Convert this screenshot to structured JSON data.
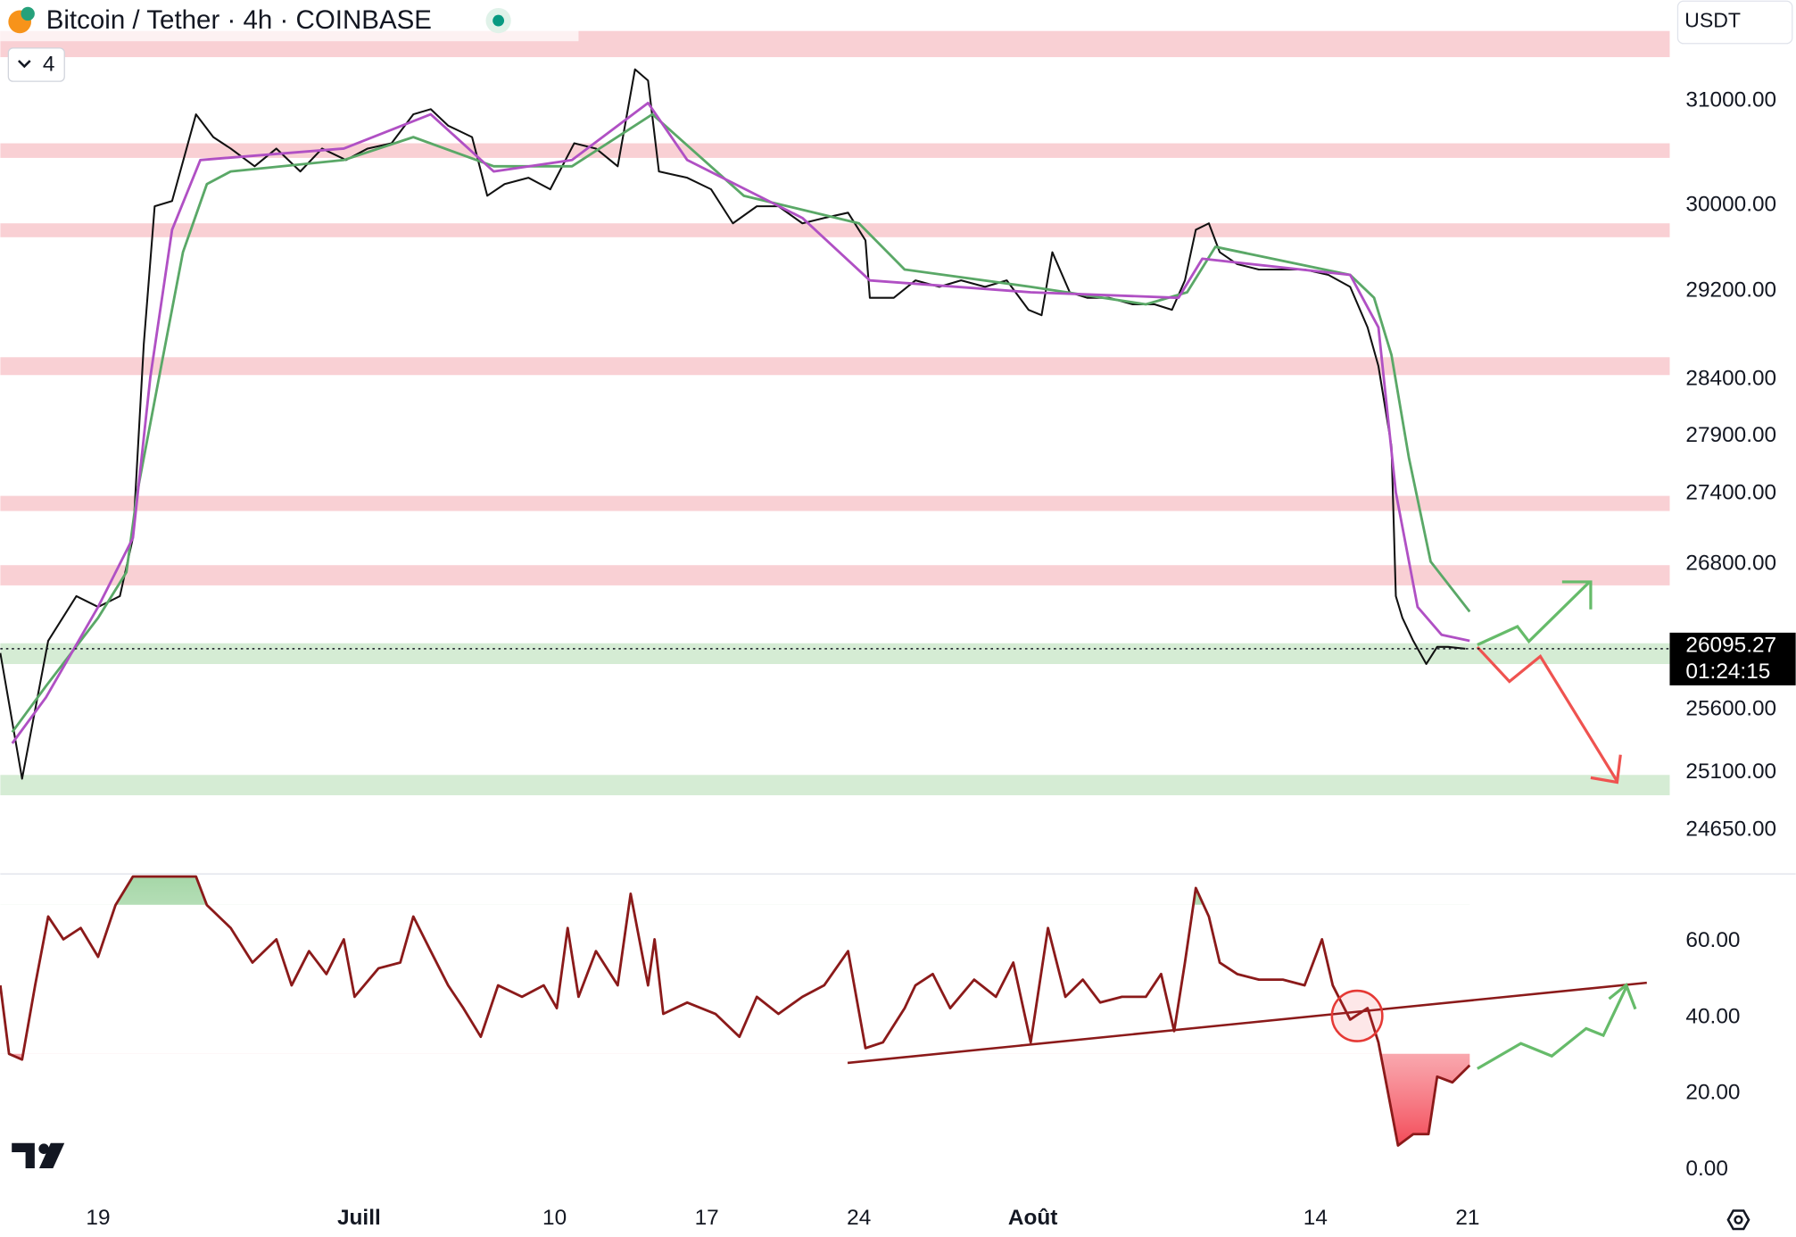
{
  "header": {
    "title": "Bitcoin / Tether · 4h · COINBASE",
    "badge": "4",
    "currency": "USDT"
  },
  "chart_data": [
    {
      "type": "line",
      "log_scale": true,
      "xlim": [
        14.5,
        91.3
      ],
      "ylim": [
        24320,
        32000
      ],
      "yticks": [
        {
          "value": 31000,
          "label": "31000.00"
        },
        {
          "value": 30000,
          "label": "30000.00"
        },
        {
          "value": 29200,
          "label": "29200.00"
        },
        {
          "value": 28400,
          "label": "28400.00"
        },
        {
          "value": 27900,
          "label": "27900.00"
        },
        {
          "value": 27400,
          "label": "27400.00"
        },
        {
          "value": 26800,
          "label": "26800.00"
        },
        {
          "value": 25600,
          "label": "25600.00"
        },
        {
          "value": 25100,
          "label": "25100.00"
        },
        {
          "value": 24650,
          "label": "24650.00"
        }
      ],
      "last_price": 26095.27,
      "countdown": "01:24:15",
      "zones": [
        {
          "from": 31430,
          "to": 31690,
          "color": "#f9d0d4"
        },
        {
          "from": 30450,
          "to": 30590,
          "color": "#f9d0d4"
        },
        {
          "from": 29700,
          "to": 29830,
          "color": "#f9d0d4"
        },
        {
          "from": 28440,
          "to": 28600,
          "color": "#f9d0d4"
        },
        {
          "from": 27250,
          "to": 27380,
          "color": "#f9d0d4"
        },
        {
          "from": 26620,
          "to": 26790,
          "color": "#f9d0d4"
        },
        {
          "from": 25970,
          "to": 26140,
          "color": "#d5ecd4"
        },
        {
          "from": 24920,
          "to": 25080,
          "color": "#d5ecd4"
        }
      ],
      "series": [
        {
          "color": "#111111",
          "x": [
            14.5,
            15.5,
            16.7,
            18,
            19,
            20,
            20.6,
            21.1,
            21.6,
            22.4,
            23.5,
            24.3,
            25.1,
            26.2,
            27.2,
            28.3,
            29.3,
            30.4,
            31.4,
            32.5,
            33.5,
            34.3,
            35.1,
            36.2,
            36.9,
            37.7,
            38.8,
            39.8,
            40.9,
            41.9,
            42.9,
            43.7,
            44.3,
            44.8,
            46.1,
            47.2,
            48.2,
            49.3,
            50.3,
            51.4,
            52.4,
            53.5,
            54.3,
            54.5,
            55.6,
            56.6,
            57.7,
            58.7,
            59.8,
            60.8,
            61.8,
            62.4,
            62.9,
            63.7,
            64.5,
            65.5,
            66.6,
            67.6,
            68.4,
            69.0,
            69.5,
            70.1,
            70.6,
            71.4,
            72.4,
            73.5,
            74.5,
            75.6,
            76.6,
            77.4,
            77.9,
            78.5,
            78.7,
            79.0,
            79.5,
            80.1,
            80.6,
            81.1,
            81.9
          ],
          "values": [
            26060,
            25050,
            26160,
            26530,
            26440,
            26530,
            27020,
            28720,
            29990,
            30040,
            30870,
            30650,
            30540,
            30370,
            30540,
            30320,
            30540,
            30430,
            30540,
            30590,
            30870,
            30920,
            30760,
            30650,
            30090,
            30200,
            30260,
            30150,
            30590,
            30540,
            30370,
            31310,
            31200,
            30320,
            30260,
            30150,
            29830,
            29990,
            29990,
            29830,
            29880,
            29930,
            29670,
            29140,
            29140,
            29300,
            29240,
            29300,
            29240,
            29300,
            29030,
            28980,
            29560,
            29190,
            29140,
            29140,
            29080,
            29080,
            29030,
            29300,
            29770,
            29830,
            29560,
            29450,
            29400,
            29400,
            29400,
            29350,
            29240,
            28870,
            28520,
            27810,
            26530,
            26350,
            26160,
            25970,
            26110,
            26110,
            26095.27
          ]
        },
        {
          "color": "#5aa867",
          "x": [
            15.05,
            16.6,
            19,
            20.3,
            20.8,
            21.9,
            22.9,
            24,
            25.1,
            30.3,
            33.5,
            37.2,
            40.8,
            44.5,
            48.7,
            54,
            56.1,
            61.9,
            67.2,
            69.1,
            70.4,
            76.6,
            77.7,
            78.5,
            79.3,
            80.3,
            82.1
          ],
          "values": [
            25420,
            25790,
            26350,
            26730,
            27410,
            28520,
            29560,
            30200,
            30320,
            30430,
            30650,
            30370,
            30370,
            30870,
            30090,
            29830,
            29400,
            29240,
            29080,
            29190,
            29610,
            29350,
            29140,
            28620,
            27710,
            26820,
            26400
          ]
        },
        {
          "color": "#b050c4",
          "x": [
            15.05,
            16.6,
            19,
            20.6,
            21.4,
            22.4,
            23.7,
            30.3,
            34.3,
            37.2,
            40.8,
            44.3,
            46.1,
            51.4,
            54.5,
            61.9,
            68.7,
            69.8,
            76.6,
            77.9,
            78.7,
            79.7,
            80.8,
            82.1
          ],
          "values": [
            25330,
            25700,
            26440,
            27020,
            28420,
            29770,
            30430,
            30540,
            30870,
            30320,
            30430,
            30980,
            30430,
            29880,
            29300,
            29190,
            29140,
            29500,
            29350,
            28870,
            27410,
            26440,
            26210,
            26160
          ]
        }
      ]
    },
    {
      "type": "line",
      "xlim": [
        14.5,
        91.3
      ],
      "ylim": [
        -5.7,
        77.7
      ],
      "yticks": [
        {
          "value": 60,
          "label": "60.00"
        },
        {
          "value": 40,
          "label": "40.00"
        },
        {
          "value": 20,
          "label": "20.00"
        },
        {
          "value": 0,
          "label": "0.00"
        }
      ],
      "xticks": [
        19,
        {
          "value": 31,
          "label": "Juill"
        },
        {
          "value": 40,
          "label": "10"
        },
        {
          "value": 47,
          "label": "17"
        },
        {
          "value": 54,
          "label": "24"
        },
        {
          "value": 62,
          "label": "Août"
        },
        {
          "value": 75,
          "label": "14"
        },
        {
          "value": 82,
          "label": "21"
        }
      ],
      "series": [
        {
          "color": "#8b1a1a",
          "x": [
            14.5,
            14.9,
            15.5,
            16.1,
            16.7,
            17.4,
            18.2,
            19,
            19.8,
            20.6,
            22.4,
            23.5,
            24,
            25.1,
            26.1,
            27.2,
            27.9,
            28.7,
            29.5,
            30.3,
            30.8,
            31.9,
            32.9,
            33.5,
            34.3,
            35.1,
            35.8,
            36.6,
            37.4,
            38.5,
            39.5,
            40.1,
            40.6,
            41.1,
            41.9,
            42.9,
            43.5,
            44.3,
            44.6,
            45,
            46.1,
            47.4,
            48.5,
            49.3,
            50.3,
            51.4,
            52.4,
            53.5,
            54.3,
            55.1,
            56.1,
            56.6,
            57.4,
            58.2,
            59.3,
            60.3,
            61.1,
            61.9,
            62.7,
            63.5,
            64.3,
            65.1,
            66.1,
            67.2,
            67.9,
            68.5,
            69,
            69.5,
            70.1,
            70.6,
            71.4,
            72.4,
            73.5,
            74.5,
            75.3,
            75.8,
            76.6,
            77.4,
            77.9,
            78.3,
            78.8,
            79.5,
            80.2,
            80.6,
            81.3,
            82.1
          ],
          "values": [
            48.4,
            30.4,
            28.9,
            48.4,
            66.5,
            60.5,
            63.5,
            55.9,
            69.5,
            77,
            77,
            77,
            69.5,
            63.5,
            54.4,
            60.5,
            48.4,
            57.4,
            51.4,
            60.5,
            45.4,
            52.9,
            54.4,
            66.5,
            57.4,
            48.4,
            42.4,
            34.9,
            48.4,
            45.4,
            48.4,
            42.4,
            63.5,
            45.4,
            57.4,
            48.4,
            72.5,
            48.4,
            60.5,
            40.9,
            43.9,
            40.9,
            34.9,
            45.4,
            40.9,
            45.4,
            48.4,
            57.4,
            31.9,
            33.4,
            42.4,
            48.4,
            51.4,
            42.4,
            49.9,
            45.4,
            54.4,
            33.4,
            63.5,
            45.4,
            49.9,
            43.9,
            45.4,
            45.4,
            51.4,
            36.4,
            54.4,
            74,
            66.5,
            54.4,
            51.4,
            49.9,
            49.9,
            48.4,
            60.5,
            48.4,
            39.4,
            42.4,
            33.4,
            21.4,
            6.3,
            9.3,
            9.3,
            24.4,
            22.9,
            27.4
          ]
        }
      ]
    }
  ]
}
